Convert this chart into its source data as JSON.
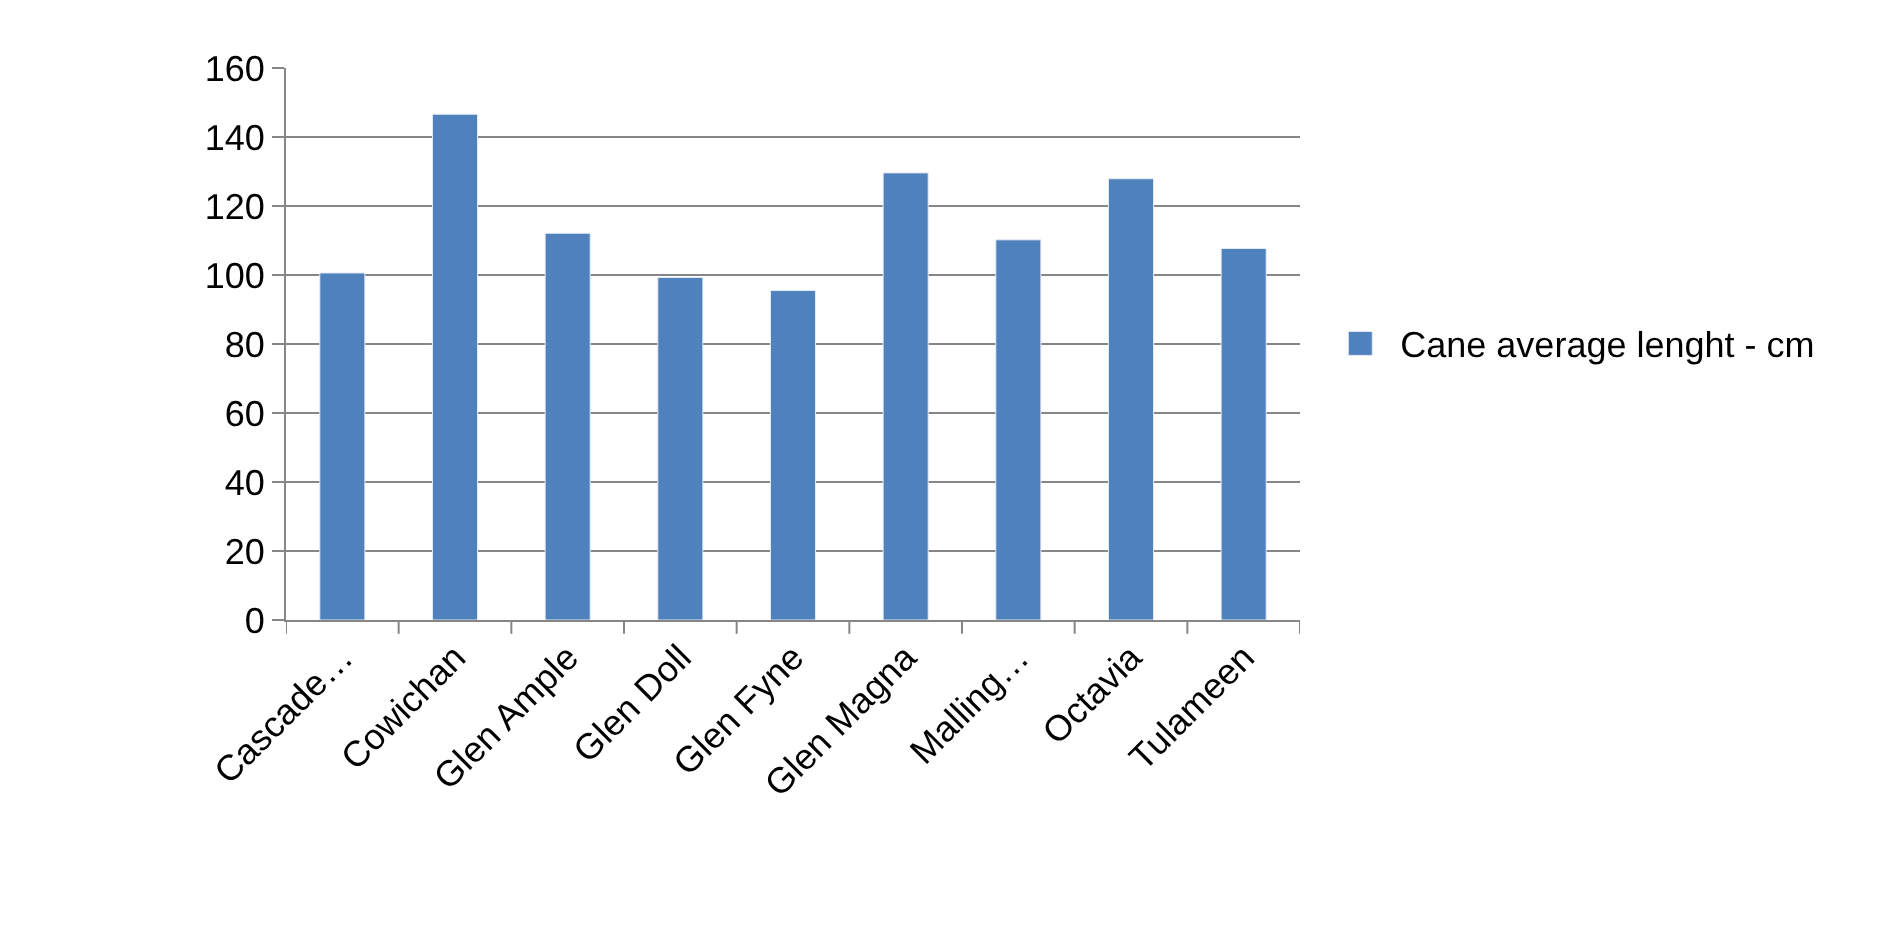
{
  "chart_data": {
    "type": "bar",
    "categories": [
      "Cascade…",
      "Cowichan",
      "Glen Ample",
      "Glen Doll",
      "Glen Fyne",
      "Glen Magna",
      "Malling…",
      "Octavia",
      "Tulameen"
    ],
    "series": [
      {
        "name": "Cane average lenght - cm",
        "color": "#4f81bd",
        "values": [
          100.6,
          146.6,
          112.1,
          99.3,
          95.5,
          129.6,
          110.2,
          127.9,
          107.7
        ]
      }
    ],
    "ylim": [
      0,
      160
    ],
    "yticks": [
      0,
      20,
      40,
      60,
      80,
      100,
      120,
      140,
      160
    ],
    "grid": "y",
    "legend": "right"
  }
}
